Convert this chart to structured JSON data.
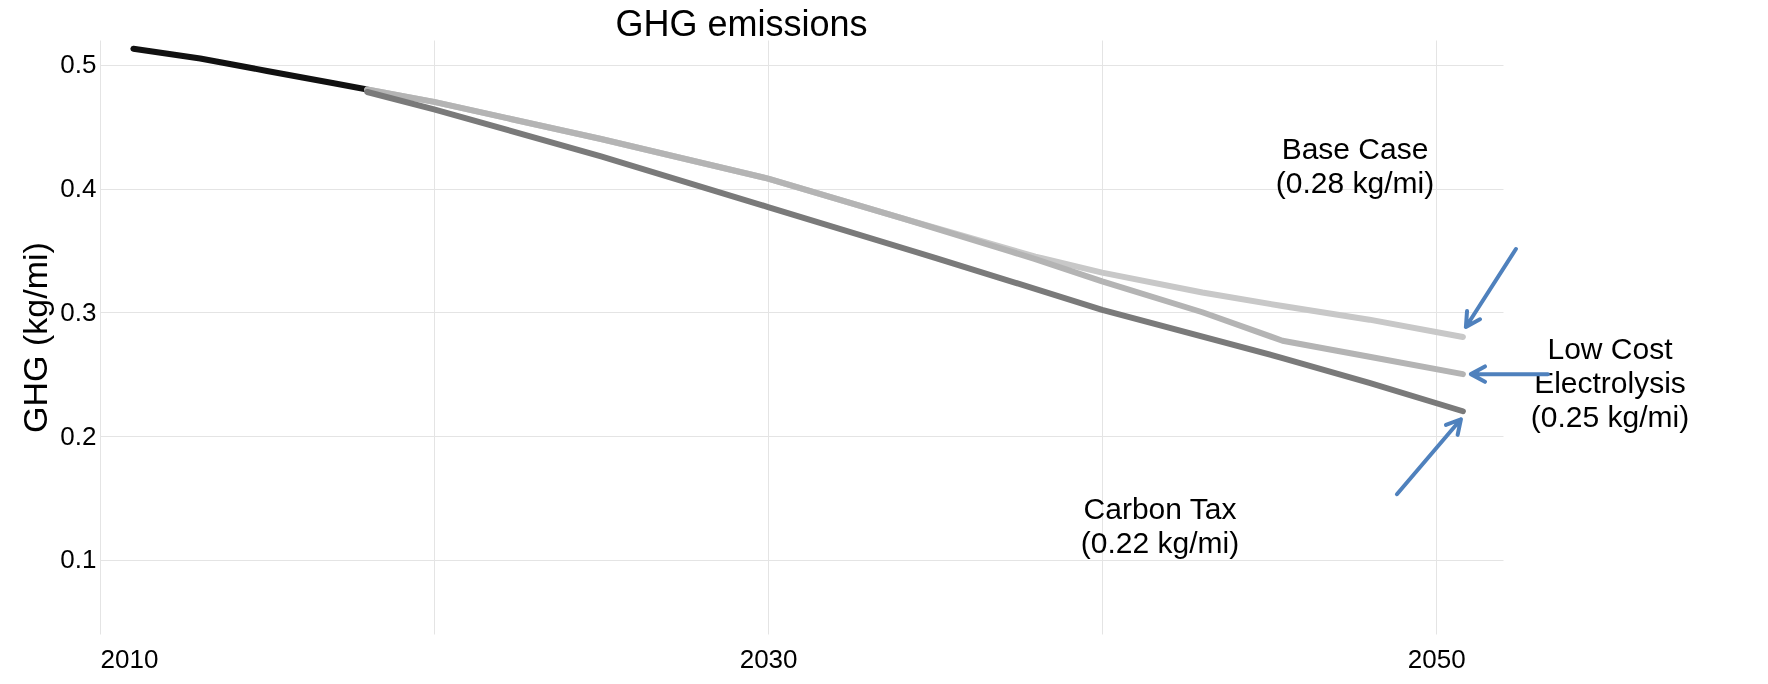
{
  "chart_data": {
    "type": "line",
    "title": "GHG emissions",
    "ylabel": "GHG (kg/mi)",
    "xlim": [
      2010,
      2052
    ],
    "xticks": [
      2010,
      {
        "value": 2020,
        "label": null
      },
      2030,
      {
        "value": 2040,
        "label": null
      },
      2050
    ],
    "ylim": [
      0.04,
      0.52
    ],
    "yticks": [
      0.1,
      0.2,
      0.3,
      0.4,
      0.5
    ],
    "grid": true,
    "line_style": "solid",
    "marker": "none",
    "series": [
      {
        "color": "#111111",
        "x": [
          2011,
          2013,
          2015,
          2017,
          2018
        ],
        "values": [
          0.513,
          0.505,
          0.495,
          0.485,
          0.48
        ]
      },
      {
        "color": "#c8c8c8",
        "x": [
          2018,
          2020,
          2025,
          2030,
          2034,
          2038,
          2040,
          2043,
          2045.4,
          2048,
          2050.8
        ],
        "values": [
          0.48,
          0.47,
          0.44,
          0.408,
          0.376,
          0.345,
          0.332,
          0.316,
          0.305,
          0.294,
          0.28
        ]
      },
      {
        "color": "#b4b4b4",
        "x": [
          2018,
          2020,
          2025,
          2030,
          2034,
          2038,
          2040,
          2043,
          2045.4,
          2048,
          2050.8
        ],
        "values": [
          0.48,
          0.47,
          0.44,
          0.408,
          0.376,
          0.343,
          0.325,
          0.3,
          0.277,
          0.264,
          0.25
        ]
      },
      {
        "color": "#7a7a7a",
        "x": [
          2018,
          2020,
          2025,
          2030,
          2035,
          2040,
          2045.4,
          2048,
          2050.8
        ],
        "values": [
          0.478,
          0.464,
          0.426,
          0.385,
          0.344,
          0.302,
          0.263,
          0.243,
          0.22
        ]
      }
    ],
    "annotations": [
      "Base Case\n(0.28 kg/mi)",
      "Low Cost\nElectrolysis\n(0.25 kg/mi)",
      "Carbon Tax\n(0.22 kg/mi)"
    ]
  }
}
